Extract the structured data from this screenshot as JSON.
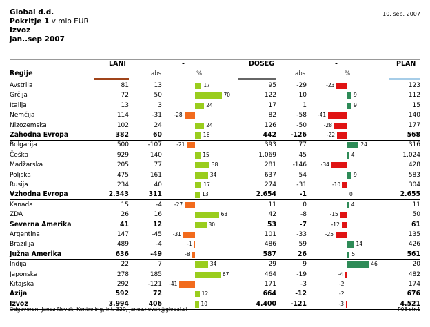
{
  "header": {
    "company": "Global d.d.",
    "title_bold": "Pokritje 1",
    "title_rest": " v mio EUR",
    "line3": "Izvoz",
    "period": "jan..sep 2007",
    "date": "10. sep. 2007"
  },
  "columns": {
    "regions": "Regije",
    "lani": "LANI",
    "dash1": "-",
    "abs1": "abs",
    "pct1": "%",
    "doseg": "DOSEG",
    "dash2": "-",
    "abs2": "abs",
    "pct2": "%",
    "plan": "PLAN"
  },
  "colors": {
    "positive_green_light": "#9acd1e",
    "negative_orange": "#f26b1d",
    "positive_green_dark": "#2e8b57",
    "negative_red": "#e01414",
    "lani_bar": "#a0441a",
    "doseg_bar": "#666666",
    "plan_bar": "#a6cde8"
  },
  "rows": [
    {
      "name": "Avstrija",
      "lani": "81",
      "abs1": "13",
      "pct1": 17,
      "doseg": "95",
      "abs2": "-29",
      "pct2": -23,
      "plan": "123",
      "bold": false
    },
    {
      "name": "Grčija",
      "lani": "72",
      "abs1": "50",
      "pct1": 70,
      "doseg": "122",
      "abs2": "10",
      "pct2": 9,
      "plan": "112",
      "bold": false
    },
    {
      "name": "Italija",
      "lani": "13",
      "abs1": "3",
      "pct1": 24,
      "doseg": "17",
      "abs2": "1",
      "pct2": 9,
      "plan": "15",
      "bold": false
    },
    {
      "name": "Nemčija",
      "lani": "114",
      "abs1": "-31",
      "pct1": -28,
      "doseg": "82",
      "abs2": "-58",
      "pct2": -41,
      "plan": "140",
      "bold": false
    },
    {
      "name": "Nizozemska",
      "lani": "102",
      "abs1": "24",
      "pct1": 24,
      "doseg": "126",
      "abs2": "-50",
      "pct2": -28,
      "plan": "177",
      "bold": false
    },
    {
      "name": "Zahodna Evropa",
      "lani": "382",
      "abs1": "60",
      "pct1": 16,
      "doseg": "442",
      "abs2": "-126",
      "pct2": -22,
      "plan": "568",
      "bold": true
    },
    {
      "name": "Bolgarija",
      "lani": "500",
      "abs1": "-107",
      "pct1": -21,
      "doseg": "393",
      "abs2": "77",
      "pct2": 24,
      "plan": "316",
      "bold": false
    },
    {
      "name": "Češka",
      "lani": "929",
      "abs1": "140",
      "pct1": 15,
      "doseg": "1.069",
      "abs2": "45",
      "pct2": 4,
      "plan": "1.024",
      "bold": false
    },
    {
      "name": "Madžarska",
      "lani": "205",
      "abs1": "77",
      "pct1": 38,
      "doseg": "281",
      "abs2": "-146",
      "pct2": -34,
      "plan": "428",
      "bold": false
    },
    {
      "name": "Poljska",
      "lani": "475",
      "abs1": "161",
      "pct1": 34,
      "doseg": "637",
      "abs2": "54",
      "pct2": 9,
      "plan": "583",
      "bold": false
    },
    {
      "name": "Rusija",
      "lani": "234",
      "abs1": "40",
      "pct1": 17,
      "doseg": "274",
      "abs2": "-31",
      "pct2": -10,
      "plan": "304",
      "bold": false
    },
    {
      "name": "Vzhodna Evropa",
      "lani": "2.343",
      "abs1": "311",
      "pct1": 13,
      "doseg": "2.654",
      "abs2": "-1",
      "pct2": 0,
      "plan": "2.655",
      "bold": true
    },
    {
      "name": "Kanada",
      "lani": "15",
      "abs1": "-4",
      "pct1": -27,
      "doseg": "11",
      "abs2": "0",
      "pct2": 4,
      "plan": "11",
      "bold": false
    },
    {
      "name": "ZDA",
      "lani": "26",
      "abs1": "16",
      "pct1": 63,
      "doseg": "42",
      "abs2": "-8",
      "pct2": -15,
      "plan": "50",
      "bold": false
    },
    {
      "name": "Severna Amerika",
      "lani": "41",
      "abs1": "12",
      "pct1": 30,
      "doseg": "53",
      "abs2": "-7",
      "pct2": -12,
      "plan": "61",
      "bold": true
    },
    {
      "name": "Argentina",
      "lani": "147",
      "abs1": "-45",
      "pct1": -31,
      "doseg": "101",
      "abs2": "-33",
      "pct2": -25,
      "plan": "135",
      "bold": false
    },
    {
      "name": "Brazilija",
      "lani": "489",
      "abs1": "-4",
      "pct1": -1,
      "doseg": "486",
      "abs2": "59",
      "pct2": 14,
      "plan": "426",
      "bold": false
    },
    {
      "name": "Južna Amerika",
      "lani": "636",
      "abs1": "-49",
      "pct1": -8,
      "doseg": "587",
      "abs2": "26",
      "pct2": 5,
      "plan": "561",
      "bold": true
    },
    {
      "name": "Indija",
      "lani": "22",
      "abs1": "7",
      "pct1": 34,
      "doseg": "29",
      "abs2": "9",
      "pct2": 46,
      "plan": "20",
      "bold": false
    },
    {
      "name": "Japonska",
      "lani": "278",
      "abs1": "185",
      "pct1": 67,
      "doseg": "464",
      "abs2": "-19",
      "pct2": -4,
      "plan": "482",
      "bold": false
    },
    {
      "name": "Kitajska",
      "lani": "292",
      "abs1": "-121",
      "pct1": -41,
      "doseg": "171",
      "abs2": "-3",
      "pct2": -2,
      "plan": "174",
      "bold": false
    },
    {
      "name": "Azija",
      "lani": "592",
      "abs1": "72",
      "pct1": 12,
      "doseg": "664",
      "abs2": "-12",
      "pct2": -2,
      "plan": "676",
      "bold": true
    },
    {
      "name": "Izvoz",
      "lani": "3.994",
      "abs1": "406",
      "pct1": 10,
      "doseg": "4.400",
      "abs2": "-121",
      "pct2": -3,
      "plan": "4.521",
      "bold": true
    }
  ],
  "footer": {
    "left": "Odgovoren: Janez Novak, Kontroling, int. 320, janez.novak@global.si",
    "right": "P08  str.1"
  }
}
